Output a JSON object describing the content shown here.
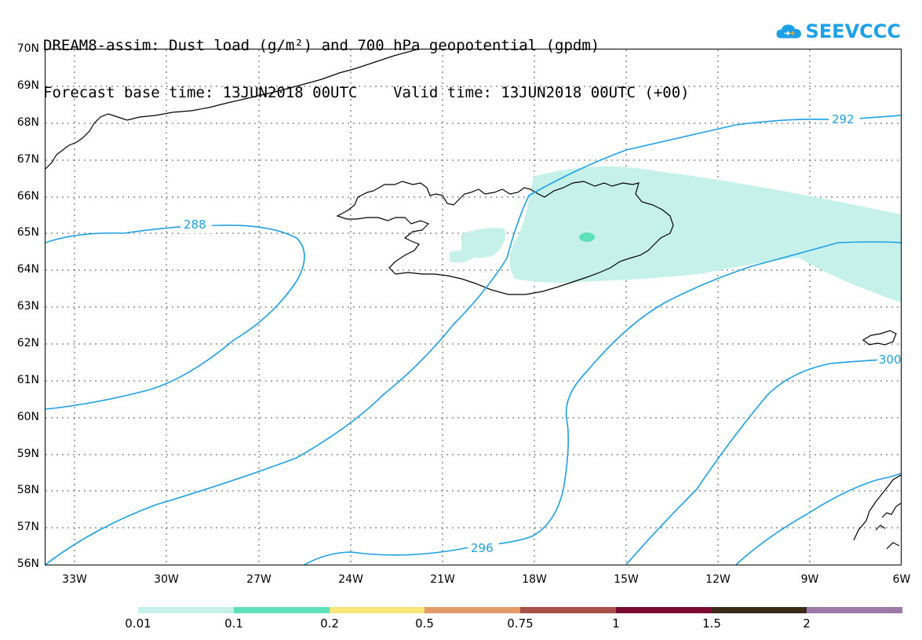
{
  "header": {
    "line1": "DREAM8-assim: Dust load (g/m²) and 700 hPa geopotential (gpdm)",
    "line2": "Forecast base time: 13JUN2018 00UTC    Valid time: 13JUN2018 00UTC (+00)"
  },
  "logo": {
    "text": "SEEVCCC",
    "icon": "cloud-icon",
    "color": "#1ea0e6"
  },
  "axes": {
    "lat_labels": [
      "70N",
      "69N",
      "68N",
      "67N",
      "66N",
      "65N",
      "64N",
      "63N",
      "62N",
      "61N",
      "60N",
      "59N",
      "58N",
      "57N",
      "56N"
    ],
    "lon_labels": [
      "33W",
      "30W",
      "27W",
      "24W",
      "21W",
      "18W",
      "15W",
      "12W",
      "9W",
      "6W"
    ]
  },
  "contours": {
    "color": "#1ea0e6",
    "labels": [
      "288",
      "292",
      "296",
      "300"
    ]
  },
  "colorbar": {
    "segments": [
      {
        "color": "#c6f0ea"
      },
      {
        "color": "#5fe0b8"
      },
      {
        "color": "#f5e67a"
      },
      {
        "color": "#e59a6a"
      },
      {
        "color": "#a84f4a"
      },
      {
        "color": "#7a0a33"
      },
      {
        "color": "#3a2a17"
      },
      {
        "color": "#9b7aa6"
      }
    ],
    "labels": [
      "0.01",
      "0.1",
      "0.2",
      "0.5",
      "0.75",
      "1",
      "1.5",
      "2"
    ]
  }
}
